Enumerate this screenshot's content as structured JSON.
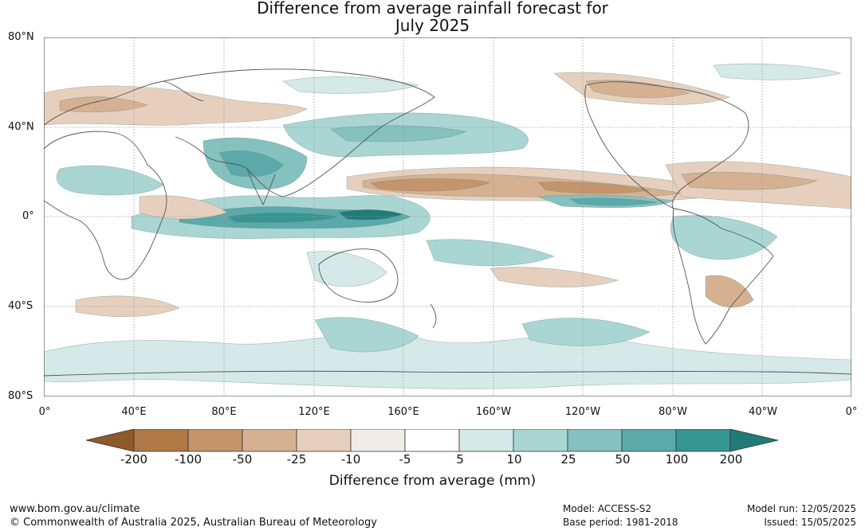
{
  "title": {
    "line1": "Difference from average rainfall forecast for",
    "line2": "July 2025"
  },
  "axes": {
    "lat_labels": [
      "80°N",
      "40°N",
      "0°",
      "40°S",
      "80°S"
    ],
    "lon_labels": [
      "0°",
      "40°E",
      "80°E",
      "120°E",
      "160°E",
      "160°W",
      "120°W",
      "80°W",
      "40°W",
      "0°"
    ]
  },
  "map_data": {
    "type": "filled contour map",
    "projection": "equirectangular",
    "lon_range": [
      0,
      360
    ],
    "lat_range": [
      -80,
      80
    ],
    "grid": true,
    "regions": [
      {
        "name": "Maritime Continent / western Pacific",
        "category": "100 to 200"
      },
      {
        "name": "equatorial Indian Ocean",
        "category": "50 to 100"
      },
      {
        "name": "eastern equatorial Pacific",
        "category": "50 to 100"
      },
      {
        "name": "North Pacific 5-20°N",
        "category": "-100 to -50"
      },
      {
        "name": "Caribbean / tropical Atlantic",
        "category": "-50 to -25"
      },
      {
        "name": "Southern Ocean",
        "category": "10 to 25"
      }
    ]
  },
  "colorbar": {
    "labels": [
      "-200",
      "-100",
      "-50",
      "-25",
      "-10",
      "-5",
      "5",
      "10",
      "25",
      "50",
      "100",
      "200"
    ],
    "colors": [
      "#8e5a2a",
      "#af7845",
      "#c4946a",
      "#d5b191",
      "#e6d0bd",
      "#f1ece6",
      "#ffffff",
      "#d5eae8",
      "#a9d6d3",
      "#84c1bf",
      "#5ba9a8",
      "#349592",
      "#217b79"
    ],
    "title": "Difference from average (mm)"
  },
  "footer": {
    "website": "www.bom.gov.au/climate",
    "copyright": "© Commonwealth of Australia 2025, Australian Bureau of Meteorology",
    "model": "Model: ACCESS-S2",
    "base_period": "Base period: 1981-2018",
    "model_run": "Model run: 12/05/2025",
    "issued": "Issued: 15/05/2025"
  }
}
